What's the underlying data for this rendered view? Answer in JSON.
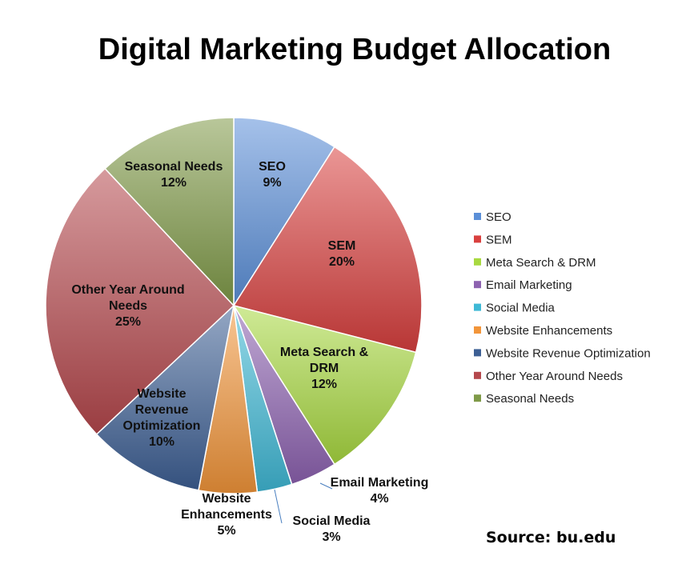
{
  "chart_data": {
    "type": "pie",
    "title": "Digital Marketing Budget Allocation",
    "source": "Source: bu.edu",
    "legend_position": "right",
    "slices": [
      {
        "name": "SEO",
        "value": 9,
        "value_label": "9%",
        "label_lines": [
          "SEO",
          "9%"
        ],
        "color": "#5b8fd8"
      },
      {
        "name": "SEM",
        "value": 20,
        "value_label": "20%",
        "label_lines": [
          "SEM",
          "20%"
        ],
        "color": "#d9403e"
      },
      {
        "name": "Meta Search & DRM",
        "value": 12,
        "value_label": "12%",
        "label_lines": [
          "Meta Search &",
          "DRM",
          "12%"
        ],
        "color": "#a8d940"
      },
      {
        "name": "Email Marketing",
        "value": 4,
        "value_label": "4%",
        "label_lines": [
          "Email Marketing",
          "4%"
        ],
        "color": "#8d62b0"
      },
      {
        "name": "Social Media",
        "value": 3,
        "value_label": "3%",
        "label_lines": [
          "Social Media",
          "3%"
        ],
        "color": "#3fb9d6"
      },
      {
        "name": "Website Enhancements",
        "value": 5,
        "value_label": "5%",
        "label_lines": [
          "Website",
          "Enhancements",
          "5%"
        ],
        "color": "#f2953a"
      },
      {
        "name": "Website Revenue Optimization",
        "value": 10,
        "value_label": "10%",
        "label_lines": [
          "Website",
          "Revenue",
          "Optimization",
          "10%"
        ],
        "color": "#3d5f94"
      },
      {
        "name": "Other Year Around Needs",
        "value": 25,
        "value_label": "25%",
        "label_lines": [
          "Other Year Around",
          "Needs",
          "25%"
        ],
        "color": "#b5484c"
      },
      {
        "name": "Seasonal Needs",
        "value": 12,
        "value_label": "12%",
        "label_lines": [
          "Seasonal Needs",
          "12%"
        ],
        "color": "#7f9a48"
      }
    ]
  }
}
